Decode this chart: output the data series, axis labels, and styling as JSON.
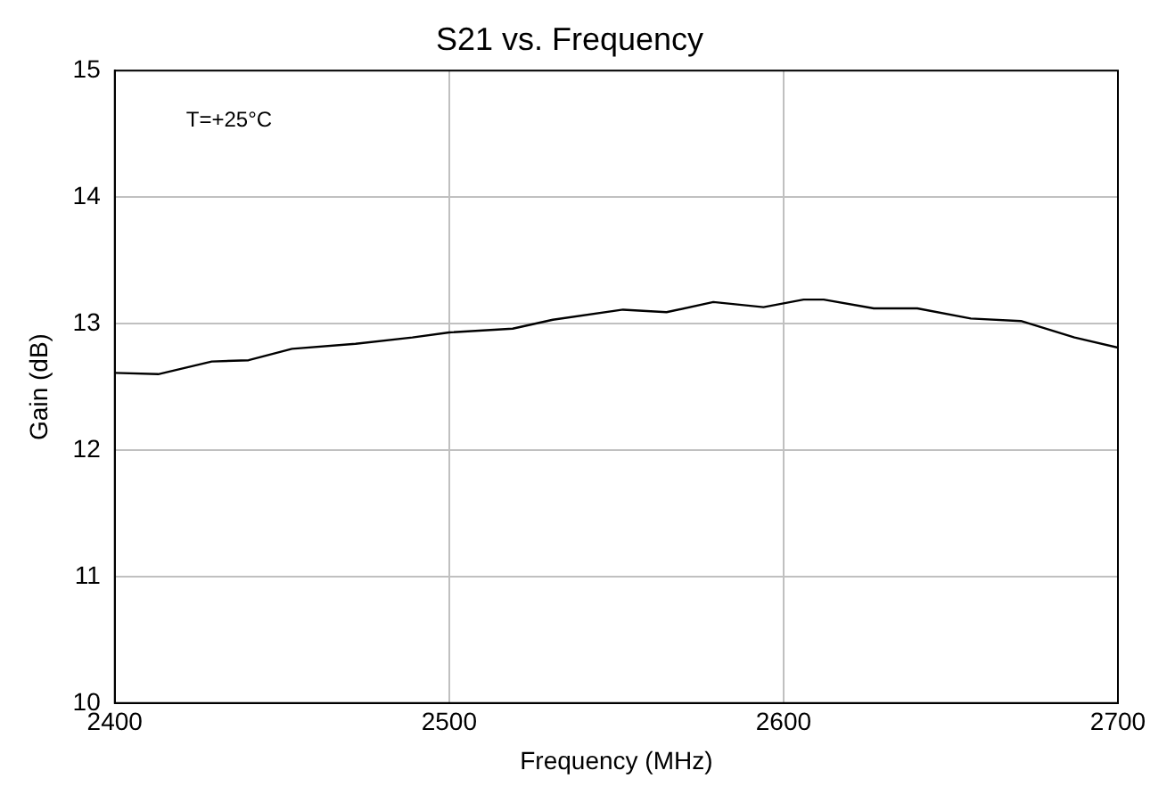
{
  "chart_data": {
    "type": "line",
    "title": "S21 vs. Frequency",
    "xlabel": "Frequency (MHz)",
    "ylabel": "Gain (dB)",
    "annotations": [
      "T=+25°C"
    ],
    "x": [
      2400,
      2413,
      2429,
      2440,
      2453,
      2472,
      2489,
      2500,
      2519,
      2531,
      2552,
      2565,
      2579,
      2594,
      2606,
      2612,
      2627,
      2640,
      2656,
      2671,
      2687,
      2700
    ],
    "series": [
      {
        "color": "#000000",
        "values": [
          12.61,
          12.6,
          12.7,
          12.71,
          12.8,
          12.84,
          12.89,
          12.93,
          12.96,
          13.03,
          13.11,
          13.09,
          13.17,
          13.13,
          13.19,
          13.19,
          13.12,
          13.12,
          13.04,
          13.02,
          12.89,
          12.81
        ]
      }
    ],
    "xlim": [
      2400,
      2700
    ],
    "xticks": [
      2400,
      2500,
      2600,
      2700
    ],
    "ylim": [
      10,
      15
    ],
    "yticks": [
      10,
      11,
      12,
      13,
      14,
      15
    ],
    "grid": true,
    "legend": false,
    "marker": "none",
    "line_style": "solid"
  }
}
